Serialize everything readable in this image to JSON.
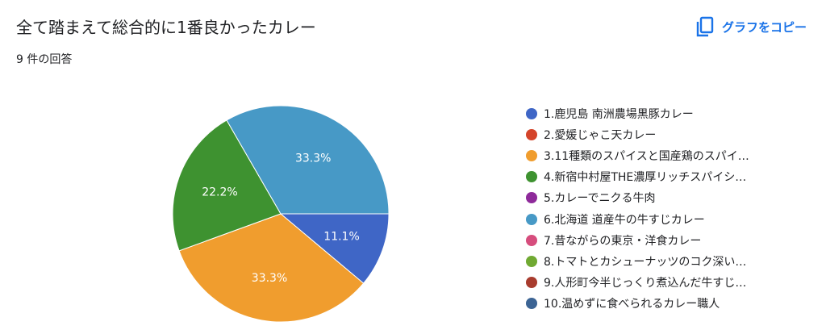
{
  "header": {
    "title": "全て踏まえて総合的に1番良かったカレー",
    "response_count": "9 件の回答",
    "copy_label": "グラフをコピー",
    "copy_icon": "copy-icon"
  },
  "chart_data": {
    "type": "pie",
    "slices": [
      {
        "label": "1.鹿児島 南洲農場黒豚カレー",
        "value": 11.1,
        "color": "#3f66c6"
      },
      {
        "label": "2.愛媛じゃこ天カレー",
        "value": 0,
        "color": "#d4442a"
      },
      {
        "label": "3.11種類のスパイスと国産鶏のスパイ…",
        "value": 33.3,
        "color": "#f09d2e"
      },
      {
        "label": "4.新宿中村屋THE濃厚リッチスパイシ…",
        "value": 22.2,
        "color": "#3e9230"
      },
      {
        "label": "5.カレーでニクる牛肉",
        "value": 0,
        "color": "#8e2a9a"
      },
      {
        "label": "6.北海道 道産牛の牛すじカレー",
        "value": 33.3,
        "color": "#4799c6"
      },
      {
        "label": "7.昔ながらの東京・洋食カレー",
        "value": 0,
        "color": "#d64d7d"
      },
      {
        "label": "8.トマトとカシューナッツのコク深い…",
        "value": 0,
        "color": "#70a932"
      },
      {
        "label": "9.人形町今半じっくり煮込んだ牛すじ…",
        "value": 0,
        "color": "#a83c2e"
      },
      {
        "label": "10.温めずに食べられるカレー職人",
        "value": 0,
        "color": "#3c6494"
      }
    ],
    "slice_labels": [
      "11.1%",
      "",
      "33.3%",
      "22.2%",
      "",
      "33.3%",
      "",
      "",
      "",
      ""
    ],
    "legend_position": "right"
  }
}
